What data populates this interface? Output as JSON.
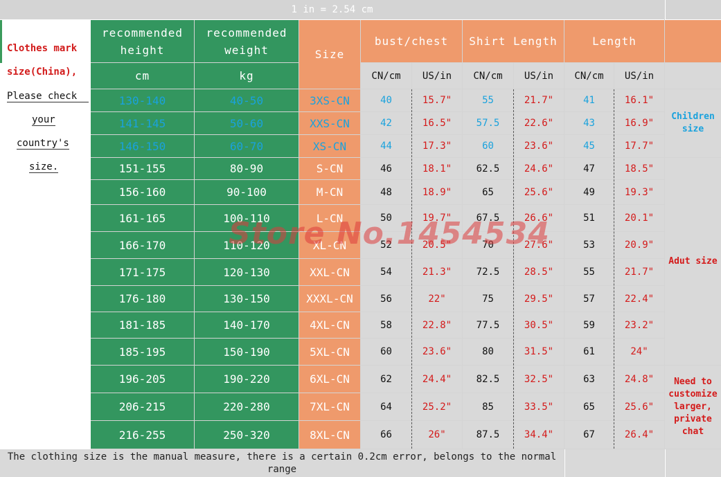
{
  "banner": "1 in = 2.54 cm",
  "left_note": {
    "line1": "Clothes mark",
    "line2": "size(China),",
    "line3": "Please check",
    "line4": "your",
    "line5": "country's",
    "line6": "size."
  },
  "headers": {
    "height": "recommended height",
    "height_unit": "cm",
    "weight": "recommended weight",
    "weight_unit": "kg",
    "size": "Size",
    "bust": "bust/chest",
    "shirt_length": "Shirt Length",
    "length": "Length",
    "cn_cm": "CN/cm",
    "us_in": "US/in"
  },
  "rows": [
    {
      "height": "130-140",
      "weight": "40-50",
      "size": "3XS-CN",
      "bust_cm": "40",
      "bust_in": "15.7\"",
      "shirt_cm": "55",
      "shirt_in": "21.7\"",
      "len_cm": "41",
      "len_in": "16.1\"",
      "group": "child"
    },
    {
      "height": "141-145",
      "weight": "50-60",
      "size": "XXS-CN",
      "bust_cm": "42",
      "bust_in": "16.5\"",
      "shirt_cm": "57.5",
      "shirt_in": "22.6\"",
      "len_cm": "43",
      "len_in": "16.9\"",
      "group": "child"
    },
    {
      "height": "146-150",
      "weight": "60-70",
      "size": "XS-CN",
      "bust_cm": "44",
      "bust_in": "17.3\"",
      "shirt_cm": "60",
      "shirt_in": "23.6\"",
      "len_cm": "45",
      "len_in": "17.7\"",
      "group": "child"
    },
    {
      "height": "151-155",
      "weight": "80-90",
      "size": "S-CN",
      "bust_cm": "46",
      "bust_in": "18.1\"",
      "shirt_cm": "62.5",
      "shirt_in": "24.6\"",
      "len_cm": "47",
      "len_in": "18.5\"",
      "group": "adult"
    },
    {
      "height": "156-160",
      "weight": "90-100",
      "size": "M-CN",
      "bust_cm": "48",
      "bust_in": "18.9\"",
      "shirt_cm": "65",
      "shirt_in": "25.6\"",
      "len_cm": "49",
      "len_in": "19.3\"",
      "group": "adult"
    },
    {
      "height": "161-165",
      "weight": "100-110",
      "size": "L-CN",
      "bust_cm": "50",
      "bust_in": "19.7\"",
      "shirt_cm": "67.5",
      "shirt_in": "26.6\"",
      "len_cm": "51",
      "len_in": "20.1\"",
      "group": "adult"
    },
    {
      "height": "166-170",
      "weight": "110-120",
      "size": "XL-CN",
      "bust_cm": "52",
      "bust_in": "20.5\"",
      "shirt_cm": "70",
      "shirt_in": "27.6\"",
      "len_cm": "53",
      "len_in": "20.9\"",
      "group": "adult"
    },
    {
      "height": "171-175",
      "weight": "120-130",
      "size": "XXL-CN",
      "bust_cm": "54",
      "bust_in": "21.3\"",
      "shirt_cm": "72.5",
      "shirt_in": "28.5\"",
      "len_cm": "55",
      "len_in": "21.7\"",
      "group": "adult"
    },
    {
      "height": "176-180",
      "weight": "130-150",
      "size": "XXXL-CN",
      "bust_cm": "56",
      "bust_in": "22\"",
      "shirt_cm": "75",
      "shirt_in": "29.5\"",
      "len_cm": "57",
      "len_in": "22.4\"",
      "group": "adult"
    },
    {
      "height": "181-185",
      "weight": "140-170",
      "size": "4XL-CN",
      "bust_cm": "58",
      "bust_in": "22.8\"",
      "shirt_cm": "77.5",
      "shirt_in": "30.5\"",
      "len_cm": "59",
      "len_in": "23.2\"",
      "group": "adult"
    },
    {
      "height": "185-195",
      "weight": "150-190",
      "size": "5XL-CN",
      "bust_cm": "60",
      "bust_in": "23.6\"",
      "shirt_cm": "80",
      "shirt_in": "31.5\"",
      "len_cm": "61",
      "len_in": "24\"",
      "group": "adult"
    },
    {
      "height": "196-205",
      "weight": "190-220",
      "size": "6XL-CN",
      "bust_cm": "62",
      "bust_in": "24.4\"",
      "shirt_cm": "82.5",
      "shirt_in": "32.5\"",
      "len_cm": "63",
      "len_in": "24.8\"",
      "group": "custom"
    },
    {
      "height": "206-215",
      "weight": "220-280",
      "size": "7XL-CN",
      "bust_cm": "64",
      "bust_in": "25.2\"",
      "shirt_cm": "85",
      "shirt_in": "33.5\"",
      "len_cm": "65",
      "len_in": "25.6\"",
      "group": "custom"
    },
    {
      "height": "216-255",
      "weight": "250-320",
      "size": "8XL-CN",
      "bust_cm": "66",
      "bust_in": "26\"",
      "shirt_cm": "87.5",
      "shirt_in": "34.4\"",
      "len_cm": "67",
      "len_in": "26.4\"",
      "group": "custom"
    }
  ],
  "side_labels": {
    "children": "Children size",
    "adult": "Adut size",
    "custom": "Need to customize larger, private chat"
  },
  "footer_note": "The clothing size is the manual measure, there is a certain 0.2cm error, belongs to the normal range",
  "watermark": "Store No.1454534",
  "colors": {
    "green": "#33965f",
    "orange": "#ef9a6c",
    "gray": "#d9d9d9",
    "red_text": "#d41a1a",
    "blue_text": "#1aa2dd"
  }
}
